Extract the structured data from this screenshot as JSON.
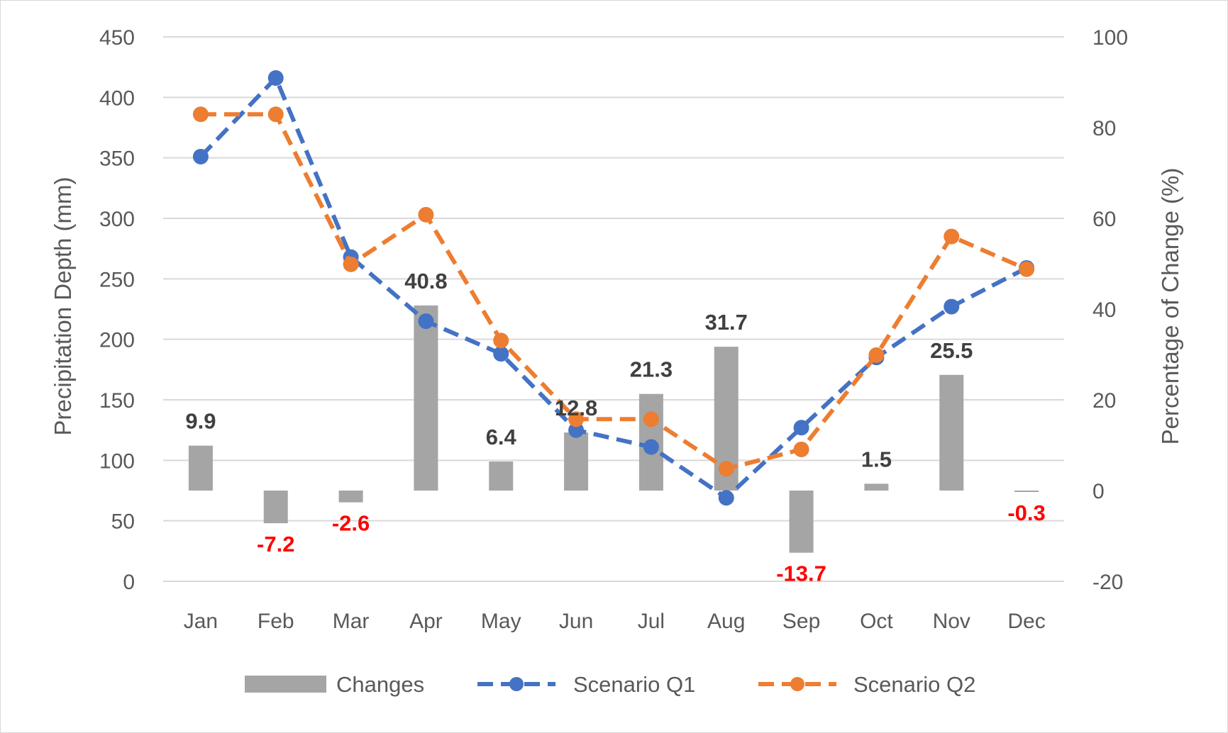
{
  "chart_data": {
    "type": "bar",
    "categories": [
      "Jan",
      "Feb",
      "Mar",
      "Apr",
      "May",
      "Jun",
      "Jul",
      "Aug",
      "Sep",
      "Oct",
      "Nov",
      "Dec"
    ],
    "series": [
      {
        "name": "Changes",
        "type": "bar",
        "axis": "right",
        "values": [
          9.9,
          -7.2,
          -2.6,
          40.8,
          6.4,
          12.8,
          21.3,
          31.7,
          -13.7,
          1.5,
          25.5,
          -0.3
        ],
        "labels": [
          "9.9",
          "-7.2",
          "-2.6",
          "40.8",
          "6.4",
          "12.8",
          "21.3",
          "31.7",
          "-13.7",
          "1.5",
          "25.5",
          "-0.3"
        ],
        "color": "#a5a5a5"
      },
      {
        "name": "Scenario Q1",
        "type": "line",
        "axis": "left",
        "style": "dashed",
        "values": [
          351,
          416,
          268,
          215,
          188,
          125,
          111,
          69,
          127,
          185,
          227,
          259
        ],
        "color": "#4472c4"
      },
      {
        "name": "Scenario Q2",
        "type": "line",
        "axis": "left",
        "style": "dashed",
        "values": [
          386,
          386,
          262,
          303,
          199,
          134,
          134,
          93,
          109,
          187,
          285,
          258
        ],
        "color": "#ed7d31"
      }
    ],
    "ylabel": "Precipitation Depth (mm)",
    "y2label": "Percentage of Change (%)",
    "ylim": [
      0,
      450
    ],
    "yticks": [
      "0",
      "50",
      "100",
      "150",
      "200",
      "250",
      "300",
      "350",
      "400",
      "450"
    ],
    "y2lim": [
      -20,
      100
    ],
    "y2ticks": [
      "-20",
      "0",
      "20",
      "40",
      "60",
      "80",
      "100"
    ],
    "grid": true,
    "legend": "bottom",
    "positive_label_color": "#404040",
    "negative_label_color": "#ff0000",
    "gridline_color": "#d9d9d9"
  }
}
